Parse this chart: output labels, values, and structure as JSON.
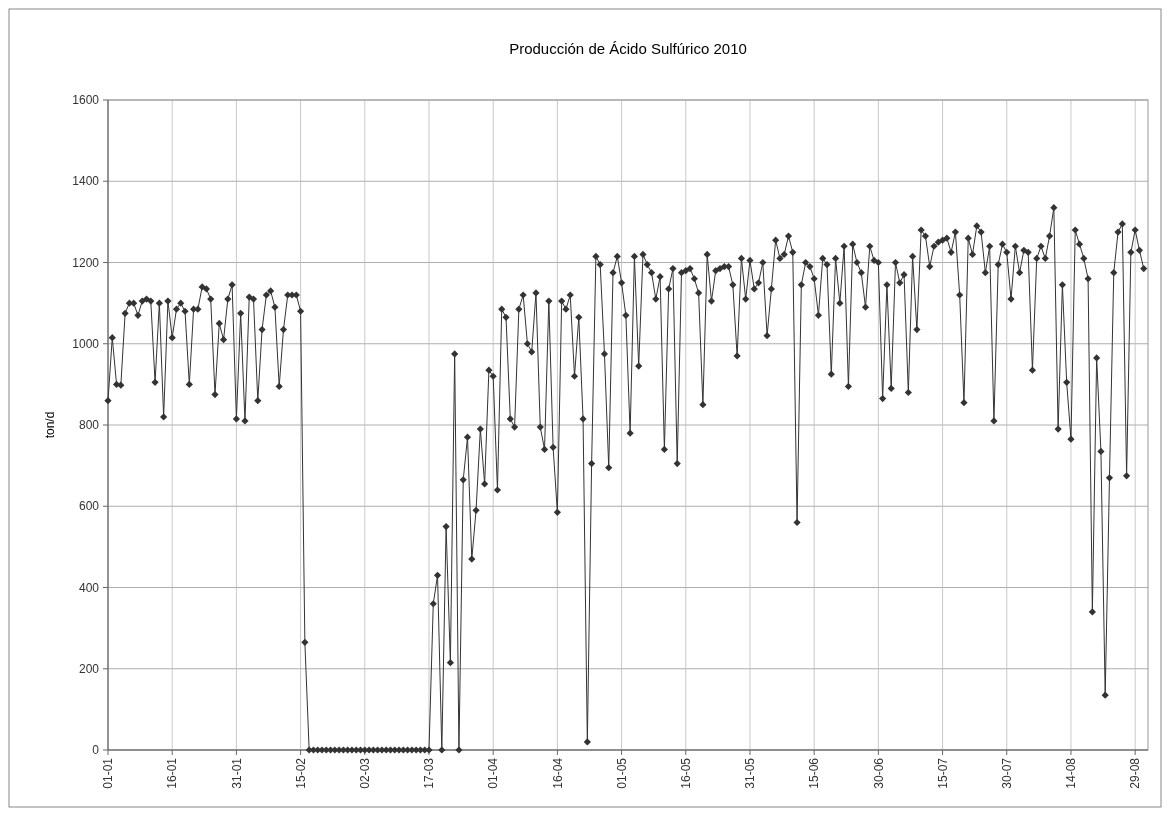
{
  "chart_data": {
    "type": "line",
    "title": "Producción de Ácido Sulfúrico 2010",
    "ylabel": "ton/d",
    "xlim": [
      "--01-01",
      "--09-01"
    ],
    "xticks": [
      {
        "value": "--01-01",
        "label": "01-01"
      },
      {
        "value": "--01-16",
        "label": "16-01"
      },
      {
        "value": "--01-31",
        "label": "31-01"
      },
      {
        "value": "--02-15",
        "label": "15-02"
      },
      {
        "value": "--03-02",
        "label": "02-03"
      },
      {
        "value": "--03-17",
        "label": "17-03"
      },
      {
        "value": "--04-01",
        "label": "01-04"
      },
      {
        "value": "--04-16",
        "label": "16-04"
      },
      {
        "value": "--05-01",
        "label": "01-05"
      },
      {
        "value": "--05-16",
        "label": "16-05"
      },
      {
        "value": "--05-31",
        "label": "31-05"
      },
      {
        "value": "--06-15",
        "label": "15-06"
      },
      {
        "value": "--06-30",
        "label": "30-06"
      },
      {
        "value": "--07-15",
        "label": "15-07"
      },
      {
        "value": "--07-30",
        "label": "30-07"
      },
      {
        "value": "--08-14",
        "label": "14-08"
      },
      {
        "value": "--08-29",
        "label": "29-08"
      }
    ],
    "ylim": [
      0,
      1600
    ],
    "yticks": [
      0,
      200,
      400,
      600,
      800,
      1000,
      1200,
      1400,
      1600
    ],
    "grid": true,
    "marker": "diamond",
    "line_style": "solid",
    "x": [
      "--01-01",
      "--01-02",
      "--01-03",
      "--01-04",
      "--01-05",
      "--01-06",
      "--01-07",
      "--01-08",
      "--01-09",
      "--01-10",
      "--01-11",
      "--01-12",
      "--01-13",
      "--01-14",
      "--01-15",
      "--01-16",
      "--01-17",
      "--01-18",
      "--01-19",
      "--01-20",
      "--01-21",
      "--01-22",
      "--01-23",
      "--01-24",
      "--01-25",
      "--01-26",
      "--01-27",
      "--01-28",
      "--01-29",
      "--01-30",
      "--01-31",
      "--02-01",
      "--02-02",
      "--02-03",
      "--02-04",
      "--02-05",
      "--02-06",
      "--02-07",
      "--02-08",
      "--02-09",
      "--02-10",
      "--02-11",
      "--02-12",
      "--02-13",
      "--02-14",
      "--02-15",
      "--02-16",
      "--02-17",
      "--02-18",
      "--02-19",
      "--02-20",
      "--02-21",
      "--02-22",
      "--02-23",
      "--02-24",
      "--02-25",
      "--02-26",
      "--02-27",
      "--02-28",
      "--03-01",
      "--03-02",
      "--03-03",
      "--03-04",
      "--03-05",
      "--03-06",
      "--03-07",
      "--03-08",
      "--03-09",
      "--03-10",
      "--03-11",
      "--03-12",
      "--03-13",
      "--03-14",
      "--03-15",
      "--03-16",
      "--03-17",
      "--03-18",
      "--03-19",
      "--03-20",
      "--03-21",
      "--03-22",
      "--03-23",
      "--03-24",
      "--03-25",
      "--03-26",
      "--03-27",
      "--03-28",
      "--03-29",
      "--03-30",
      "--03-31",
      "--04-01",
      "--04-02",
      "--04-03",
      "--04-04",
      "--04-05",
      "--04-06",
      "--04-07",
      "--04-08",
      "--04-09",
      "--04-10",
      "--04-11",
      "--04-12",
      "--04-13",
      "--04-14",
      "--04-15",
      "--04-16",
      "--04-17",
      "--04-18",
      "--04-19",
      "--04-20",
      "--04-21",
      "--04-22",
      "--04-23",
      "--04-24",
      "--04-25",
      "--04-26",
      "--04-27",
      "--04-28",
      "--04-29",
      "--04-30",
      "--05-01",
      "--05-02",
      "--05-03",
      "--05-04",
      "--05-05",
      "--05-06",
      "--05-07",
      "--05-08",
      "--05-09",
      "--05-10",
      "--05-11",
      "--05-12",
      "--05-13",
      "--05-14",
      "--05-15",
      "--05-16",
      "--05-17",
      "--05-18",
      "--05-19",
      "--05-20",
      "--05-21",
      "--05-22",
      "--05-23",
      "--05-24",
      "--05-25",
      "--05-26",
      "--05-27",
      "--05-28",
      "--05-29",
      "--05-30",
      "--05-31",
      "--06-01",
      "--06-02",
      "--06-03",
      "--06-04",
      "--06-05",
      "--06-06",
      "--06-07",
      "--06-08",
      "--06-09",
      "--06-10",
      "--06-11",
      "--06-12",
      "--06-13",
      "--06-14",
      "--06-15",
      "--06-16",
      "--06-17",
      "--06-18",
      "--06-19",
      "--06-20",
      "--06-21",
      "--06-22",
      "--06-23",
      "--06-24",
      "--06-25",
      "--06-26",
      "--06-27",
      "--06-28",
      "--06-29",
      "--06-30",
      "--07-01",
      "--07-02",
      "--07-03",
      "--07-04",
      "--07-05",
      "--07-06",
      "--07-07",
      "--07-08",
      "--07-09",
      "--07-10",
      "--07-11",
      "--07-12",
      "--07-13",
      "--07-14",
      "--07-15",
      "--07-16",
      "--07-17",
      "--07-18",
      "--07-19",
      "--07-20",
      "--07-21",
      "--07-22",
      "--07-23",
      "--07-24",
      "--07-25",
      "--07-26",
      "--07-27",
      "--07-28",
      "--07-29",
      "--07-30",
      "--07-31",
      "--08-01",
      "--08-02",
      "--08-03",
      "--08-04",
      "--08-05",
      "--08-06",
      "--08-07",
      "--08-08",
      "--08-09",
      "--08-10",
      "--08-11",
      "--08-12",
      "--08-13",
      "--08-14",
      "--08-15",
      "--08-16",
      "--08-17",
      "--08-18",
      "--08-19",
      "--08-20",
      "--08-21",
      "--08-22",
      "--08-23",
      "--08-24",
      "--08-25",
      "--08-26",
      "--08-27",
      "--08-28",
      "--08-29",
      "--08-30",
      "--08-31"
    ],
    "series": [
      {
        "color": "#333333",
        "values": [
          860,
          1015,
          900,
          898,
          1075,
          1100,
          1100,
          1070,
          1105,
          1110,
          1105,
          905,
          1100,
          820,
          1105,
          1015,
          1085,
          1100,
          1080,
          900,
          1085,
          1085,
          1140,
          1135,
          1110,
          875,
          1050,
          1010,
          1110,
          1145,
          815,
          1075,
          810,
          1115,
          1110,
          860,
          1035,
          1120,
          1130,
          1090,
          895,
          1035,
          1120,
          1120,
          1120,
          1080,
          265,
          0,
          0,
          0,
          0,
          0,
          0,
          0,
          0,
          0,
          0,
          0,
          0,
          0,
          0,
          0,
          0,
          0,
          0,
          0,
          0,
          0,
          0,
          0,
          0,
          0,
          0,
          0,
          0,
          0,
          360,
          430,
          0,
          550,
          215,
          975,
          0,
          665,
          770,
          470,
          590,
          790,
          655,
          935,
          920,
          640,
          1085,
          1065,
          815,
          795,
          1085,
          1120,
          1000,
          980,
          1125,
          795,
          740,
          1105,
          745,
          585,
          1105,
          1085,
          1120,
          920,
          1065,
          815,
          20,
          705,
          1215,
          1195,
          975,
          695,
          1175,
          1215,
          1150,
          1070,
          780,
          1215,
          945,
          1220,
          1195,
          1175,
          1110,
          1165,
          740,
          1135,
          1185,
          705,
          1175,
          1180,
          1185,
          1160,
          1125,
          850,
          1220,
          1105,
          1180,
          1185,
          1190,
          1190,
          1145,
          970,
          1210,
          1110,
          1205,
          1135,
          1150,
          1200,
          1020,
          1135,
          1255,
          1210,
          1220,
          1265,
          1225,
          560,
          1145,
          1200,
          1190,
          1160,
          1070,
          1210,
          1195,
          925,
          1210,
          1100,
          1240,
          895,
          1245,
          1200,
          1175,
          1090,
          1240,
          1205,
          1200,
          865,
          1145,
          890,
          1200,
          1150,
          1170,
          880,
          1215,
          1035,
          1280,
          1265,
          1190,
          1240,
          1250,
          1255,
          1260,
          1225,
          1275,
          1120,
          855,
          1260,
          1220,
          1290,
          1275,
          1175,
          1240,
          810,
          1195,
          1245,
          1225,
          1110,
          1240,
          1175,
          1230,
          1225,
          935,
          1210,
          1240,
          1210,
          1265,
          1335,
          790,
          1145,
          905,
          765,
          1280,
          1245,
          1210,
          1160,
          340,
          965,
          735,
          135,
          670,
          1175,
          1275,
          1295,
          675,
          1225,
          1280,
          1230,
          1185
        ]
      }
    ]
  }
}
